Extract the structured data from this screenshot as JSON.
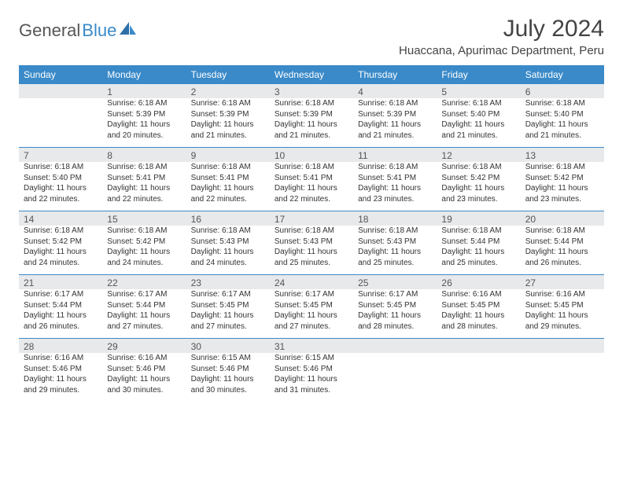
{
  "brand": {
    "name_part1": "General",
    "name_part2": "Blue",
    "accent_color": "#3a8ac9"
  },
  "title": "July 2024",
  "location": "Huaccana, Apurimac Department, Peru",
  "header_bg": "#3a8ac9",
  "num_row_bg": "#e7e9eb",
  "sep_color": "#3a8ac9",
  "days": [
    "Sunday",
    "Monday",
    "Tuesday",
    "Wednesday",
    "Thursday",
    "Friday",
    "Saturday"
  ],
  "weeks": [
    [
      {
        "n": "",
        "sunrise": "",
        "sunset": "",
        "daylight": ""
      },
      {
        "n": "1",
        "sunrise": "Sunrise: 6:18 AM",
        "sunset": "Sunset: 5:39 PM",
        "daylight": "Daylight: 11 hours and 20 minutes."
      },
      {
        "n": "2",
        "sunrise": "Sunrise: 6:18 AM",
        "sunset": "Sunset: 5:39 PM",
        "daylight": "Daylight: 11 hours and 21 minutes."
      },
      {
        "n": "3",
        "sunrise": "Sunrise: 6:18 AM",
        "sunset": "Sunset: 5:39 PM",
        "daylight": "Daylight: 11 hours and 21 minutes."
      },
      {
        "n": "4",
        "sunrise": "Sunrise: 6:18 AM",
        "sunset": "Sunset: 5:39 PM",
        "daylight": "Daylight: 11 hours and 21 minutes."
      },
      {
        "n": "5",
        "sunrise": "Sunrise: 6:18 AM",
        "sunset": "Sunset: 5:40 PM",
        "daylight": "Daylight: 11 hours and 21 minutes."
      },
      {
        "n": "6",
        "sunrise": "Sunrise: 6:18 AM",
        "sunset": "Sunset: 5:40 PM",
        "daylight": "Daylight: 11 hours and 21 minutes."
      }
    ],
    [
      {
        "n": "7",
        "sunrise": "Sunrise: 6:18 AM",
        "sunset": "Sunset: 5:40 PM",
        "daylight": "Daylight: 11 hours and 22 minutes."
      },
      {
        "n": "8",
        "sunrise": "Sunrise: 6:18 AM",
        "sunset": "Sunset: 5:41 PM",
        "daylight": "Daylight: 11 hours and 22 minutes."
      },
      {
        "n": "9",
        "sunrise": "Sunrise: 6:18 AM",
        "sunset": "Sunset: 5:41 PM",
        "daylight": "Daylight: 11 hours and 22 minutes."
      },
      {
        "n": "10",
        "sunrise": "Sunrise: 6:18 AM",
        "sunset": "Sunset: 5:41 PM",
        "daylight": "Daylight: 11 hours and 22 minutes."
      },
      {
        "n": "11",
        "sunrise": "Sunrise: 6:18 AM",
        "sunset": "Sunset: 5:41 PM",
        "daylight": "Daylight: 11 hours and 23 minutes."
      },
      {
        "n": "12",
        "sunrise": "Sunrise: 6:18 AM",
        "sunset": "Sunset: 5:42 PM",
        "daylight": "Daylight: 11 hours and 23 minutes."
      },
      {
        "n": "13",
        "sunrise": "Sunrise: 6:18 AM",
        "sunset": "Sunset: 5:42 PM",
        "daylight": "Daylight: 11 hours and 23 minutes."
      }
    ],
    [
      {
        "n": "14",
        "sunrise": "Sunrise: 6:18 AM",
        "sunset": "Sunset: 5:42 PM",
        "daylight": "Daylight: 11 hours and 24 minutes."
      },
      {
        "n": "15",
        "sunrise": "Sunrise: 6:18 AM",
        "sunset": "Sunset: 5:42 PM",
        "daylight": "Daylight: 11 hours and 24 minutes."
      },
      {
        "n": "16",
        "sunrise": "Sunrise: 6:18 AM",
        "sunset": "Sunset: 5:43 PM",
        "daylight": "Daylight: 11 hours and 24 minutes."
      },
      {
        "n": "17",
        "sunrise": "Sunrise: 6:18 AM",
        "sunset": "Sunset: 5:43 PM",
        "daylight": "Daylight: 11 hours and 25 minutes."
      },
      {
        "n": "18",
        "sunrise": "Sunrise: 6:18 AM",
        "sunset": "Sunset: 5:43 PM",
        "daylight": "Daylight: 11 hours and 25 minutes."
      },
      {
        "n": "19",
        "sunrise": "Sunrise: 6:18 AM",
        "sunset": "Sunset: 5:44 PM",
        "daylight": "Daylight: 11 hours and 25 minutes."
      },
      {
        "n": "20",
        "sunrise": "Sunrise: 6:18 AM",
        "sunset": "Sunset: 5:44 PM",
        "daylight": "Daylight: 11 hours and 26 minutes."
      }
    ],
    [
      {
        "n": "21",
        "sunrise": "Sunrise: 6:17 AM",
        "sunset": "Sunset: 5:44 PM",
        "daylight": "Daylight: 11 hours and 26 minutes."
      },
      {
        "n": "22",
        "sunrise": "Sunrise: 6:17 AM",
        "sunset": "Sunset: 5:44 PM",
        "daylight": "Daylight: 11 hours and 27 minutes."
      },
      {
        "n": "23",
        "sunrise": "Sunrise: 6:17 AM",
        "sunset": "Sunset: 5:45 PM",
        "daylight": "Daylight: 11 hours and 27 minutes."
      },
      {
        "n": "24",
        "sunrise": "Sunrise: 6:17 AM",
        "sunset": "Sunset: 5:45 PM",
        "daylight": "Daylight: 11 hours and 27 minutes."
      },
      {
        "n": "25",
        "sunrise": "Sunrise: 6:17 AM",
        "sunset": "Sunset: 5:45 PM",
        "daylight": "Daylight: 11 hours and 28 minutes."
      },
      {
        "n": "26",
        "sunrise": "Sunrise: 6:16 AM",
        "sunset": "Sunset: 5:45 PM",
        "daylight": "Daylight: 11 hours and 28 minutes."
      },
      {
        "n": "27",
        "sunrise": "Sunrise: 6:16 AM",
        "sunset": "Sunset: 5:45 PM",
        "daylight": "Daylight: 11 hours and 29 minutes."
      }
    ],
    [
      {
        "n": "28",
        "sunrise": "Sunrise: 6:16 AM",
        "sunset": "Sunset: 5:46 PM",
        "daylight": "Daylight: 11 hours and 29 minutes."
      },
      {
        "n": "29",
        "sunrise": "Sunrise: 6:16 AM",
        "sunset": "Sunset: 5:46 PM",
        "daylight": "Daylight: 11 hours and 30 minutes."
      },
      {
        "n": "30",
        "sunrise": "Sunrise: 6:15 AM",
        "sunset": "Sunset: 5:46 PM",
        "daylight": "Daylight: 11 hours and 30 minutes."
      },
      {
        "n": "31",
        "sunrise": "Sunrise: 6:15 AM",
        "sunset": "Sunset: 5:46 PM",
        "daylight": "Daylight: 11 hours and 31 minutes."
      },
      {
        "n": "",
        "sunrise": "",
        "sunset": "",
        "daylight": ""
      },
      {
        "n": "",
        "sunrise": "",
        "sunset": "",
        "daylight": ""
      },
      {
        "n": "",
        "sunrise": "",
        "sunset": "",
        "daylight": ""
      }
    ]
  ]
}
